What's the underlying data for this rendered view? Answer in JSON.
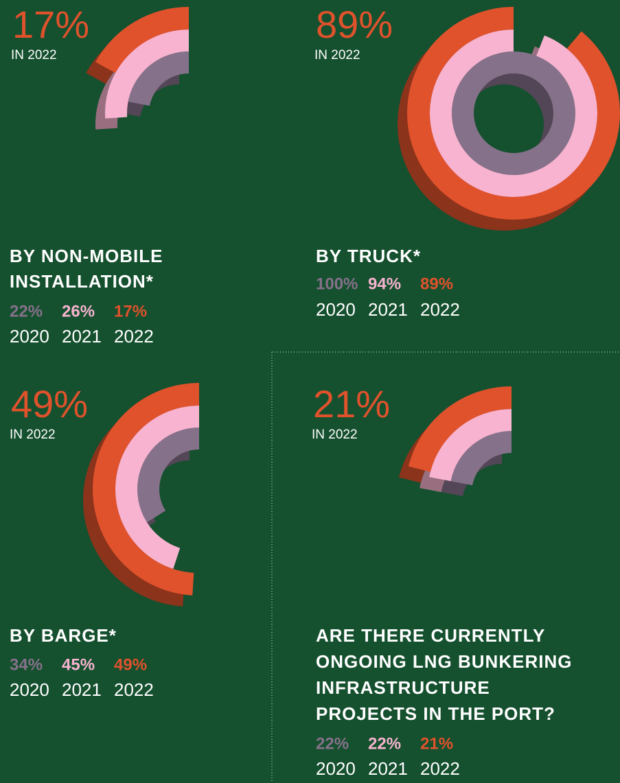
{
  "chart_data": [
    {
      "type": "radial",
      "title_lines": [
        "BY NON-MOBILE",
        "INSTALLATION*"
      ],
      "note": "IN 2022",
      "categories": [
        "2020",
        "2021",
        "2022"
      ],
      "values": [
        22,
        26,
        17
      ],
      "value_labels": [
        "22%",
        "26%",
        "17%"
      ],
      "colors": [
        "#86718a",
        "#f7b3cf",
        "#e0522c"
      ]
    },
    {
      "type": "radial",
      "title_lines": [
        "BY TRUCK*"
      ],
      "note": "IN 2022",
      "categories": [
        "2020",
        "2021",
        "2022"
      ],
      "values": [
        100,
        94,
        89
      ],
      "value_labels": [
        "100%",
        "94%",
        "89%"
      ],
      "colors": [
        "#86718a",
        "#f7b3cf",
        "#e0522c"
      ]
    },
    {
      "type": "radial",
      "title_lines": [
        "BY BARGE*"
      ],
      "note": "IN 2022",
      "categories": [
        "2020",
        "2021",
        "2022"
      ],
      "values": [
        34,
        45,
        49
      ],
      "value_labels": [
        "34%",
        "45%",
        "49%"
      ],
      "colors": [
        "#86718a",
        "#f7b3cf",
        "#e0522c"
      ]
    },
    {
      "type": "radial",
      "title_lines": [
        "ARE THERE CURRENTLY",
        "ONGOING LNG BUNKERING",
        "INFRASTRUCTURE",
        "PROJECTS IN THE PORT?"
      ],
      "note": "IN 2022",
      "categories": [
        "2020",
        "2021",
        "2022"
      ],
      "values": [
        22,
        22,
        21
      ],
      "value_labels": [
        "22%",
        "22%",
        "21%"
      ],
      "colors": [
        "#86718a",
        "#f7b3cf",
        "#e0522c"
      ]
    }
  ]
}
